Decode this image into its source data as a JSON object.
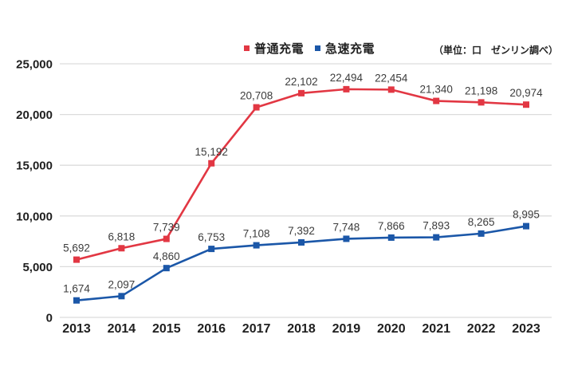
{
  "chart_data": {
    "type": "line",
    "title": "",
    "categories": [
      "2013",
      "2014",
      "2015",
      "2016",
      "2017",
      "2018",
      "2019",
      "2020",
      "2021",
      "2022",
      "2023"
    ],
    "series": [
      {
        "name": "普通充電",
        "color": "#e23743",
        "values": [
          5692,
          6818,
          7739,
          15192,
          20708,
          22102,
          22494,
          22454,
          21340,
          21198,
          20974
        ]
      },
      {
        "name": "急速充電",
        "color": "#1b57a8",
        "values": [
          1674,
          2097,
          4860,
          6753,
          7108,
          7392,
          7748,
          7866,
          7893,
          8265,
          8995
        ]
      }
    ],
    "unit_note": "（単位：口　ゼンリン調べ）",
    "ylim": [
      0,
      25000
    ],
    "ytick_step": 5000,
    "ytick_labels": [
      "0",
      "5,000",
      "10,000",
      "15,000",
      "20,000",
      "25,000"
    ],
    "grid": "horizontal",
    "grid_color": "#dcdcdc",
    "legend_position": "top",
    "marker": "square",
    "value_labels": true,
    "axis_text_color": "#1f1f1f",
    "value_label_color": "#3c3c3c"
  }
}
